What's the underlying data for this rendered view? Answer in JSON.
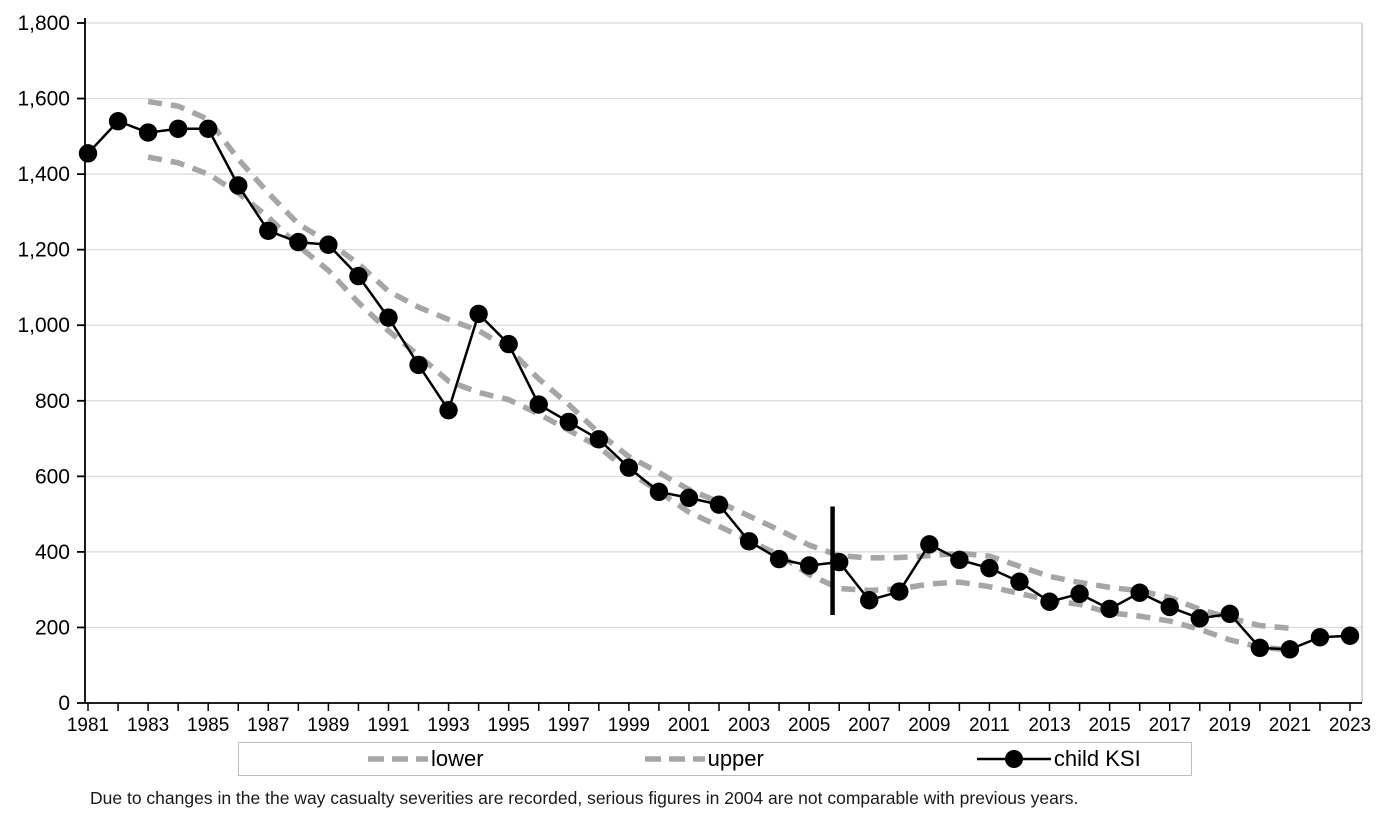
{
  "chart_data": {
    "type": "line",
    "title": "",
    "xlabel": "",
    "ylabel": "",
    "ylim": [
      0,
      1800
    ],
    "ytick_interval": 200,
    "y_tick_labels": [
      "0",
      "200",
      "400",
      "600",
      "800",
      "1,000",
      "1,200",
      "1,400",
      "1,600",
      "1,800"
    ],
    "x_tick_label_years": [
      1981,
      1983,
      1985,
      1987,
      1989,
      1991,
      1993,
      1995,
      1997,
      1999,
      2001,
      2003,
      2005,
      2007,
      2009,
      2011,
      2013,
      2015,
      2017,
      2019,
      2021,
      2023
    ],
    "grid": "horizontal",
    "legend_position": "bottom",
    "x": [
      1981,
      1982,
      1983,
      1984,
      1985,
      1986,
      1987,
      1988,
      1989,
      1990,
      1991,
      1992,
      1993,
      1994,
      1995,
      1996,
      1997,
      1998,
      1999,
      2000,
      2001,
      2002,
      2003,
      2004,
      2005,
      2006,
      2007,
      2008,
      2009,
      2010,
      2011,
      2012,
      2013,
      2014,
      2015,
      2016,
      2017,
      2018,
      2019,
      2020,
      2021,
      2022,
      2023
    ],
    "series": [
      {
        "name": "lower",
        "style": "dashed",
        "color": "#a6a6a6",
        "values": [
          null,
          null,
          1445,
          1430,
          1400,
          1350,
          1286,
          1210,
          1145,
          1060,
          985,
          920,
          852,
          822,
          803,
          765,
          722,
          678,
          612,
          560,
          505,
          468,
          430,
          392,
          340,
          303,
          298,
          302,
          315,
          320,
          308,
          290,
          272,
          261,
          239,
          230,
          217,
          195,
          167,
          148,
          140,
          null,
          null
        ]
      },
      {
        "name": "upper",
        "style": "dashed",
        "color": "#a6a6a6",
        "values": [
          null,
          null,
          1592,
          1580,
          1545,
          1440,
          1350,
          1268,
          1220,
          1163,
          1090,
          1048,
          1015,
          986,
          938,
          858,
          790,
          715,
          652,
          610,
          565,
          532,
          495,
          458,
          418,
          390,
          384,
          385,
          390,
          396,
          389,
          362,
          335,
          319,
          306,
          297,
          279,
          248,
          225,
          205,
          198,
          null,
          null
        ]
      },
      {
        "name": "child KSI",
        "style": "solid-markers",
        "color": "#000000",
        "values": [
          1455,
          1540,
          1510,
          1520,
          1520,
          1370,
          1250,
          1220,
          1213,
          1130,
          1020,
          895,
          775,
          1030,
          950,
          790,
          744,
          698,
          623,
          559,
          543,
          525,
          428,
          381,
          364,
          373,
          272,
          295,
          420,
          379,
          357,
          321,
          268,
          289,
          249,
          292,
          254,
          224,
          236,
          146,
          142,
          174,
          178
        ]
      }
    ],
    "break_marker": {
      "year": 2005.78,
      "value_from": 233,
      "value_to": 520
    }
  },
  "legend": {
    "items": [
      {
        "label": "lower"
      },
      {
        "label": "upper"
      },
      {
        "label": "child KSI"
      }
    ]
  },
  "footnote": "Due to changes in the the way casualty severities are recorded, serious figures in 2004 are not comparable with previous years."
}
